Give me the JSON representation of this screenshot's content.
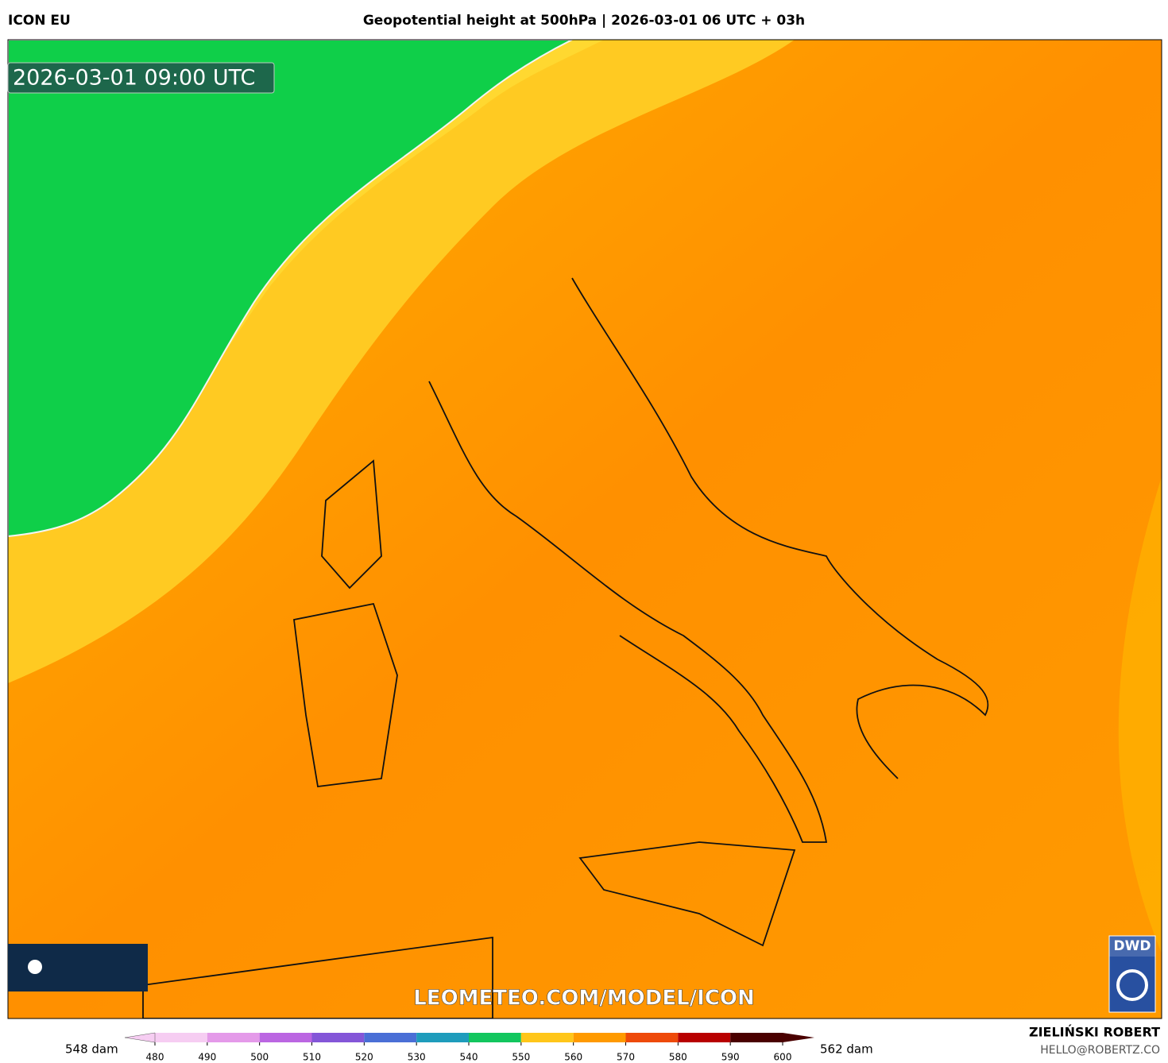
{
  "header": {
    "model": "ICON EU",
    "title": "Geopotential height at 500hPa | 2026-03-01 06 UTC + 03h"
  },
  "map": {
    "valid_time": "2026-03-01 09:00 UTC",
    "watermark": "LEOMETEO.COM/MODEL/ICON",
    "logo": "DWD"
  },
  "colorbar": {
    "low_label": "548 dam",
    "high_label": "562 dam",
    "ticks": [
      480,
      490,
      500,
      510,
      520,
      530,
      540,
      550,
      560,
      570,
      580,
      590,
      600
    ],
    "colors": [
      "#f6cdf2",
      "#e49ae9",
      "#bb66e2",
      "#8456d8",
      "#4a6fd6",
      "#1e9cbc",
      "#12c65e",
      "#ffc61a",
      "#ff9a00",
      "#ee4a0a",
      "#b80000",
      "#4a0000"
    ]
  },
  "credits": {
    "author": "ZIELIŃSKI ROBERT",
    "contact": "HELLO@ROBERTZ.CO"
  }
}
